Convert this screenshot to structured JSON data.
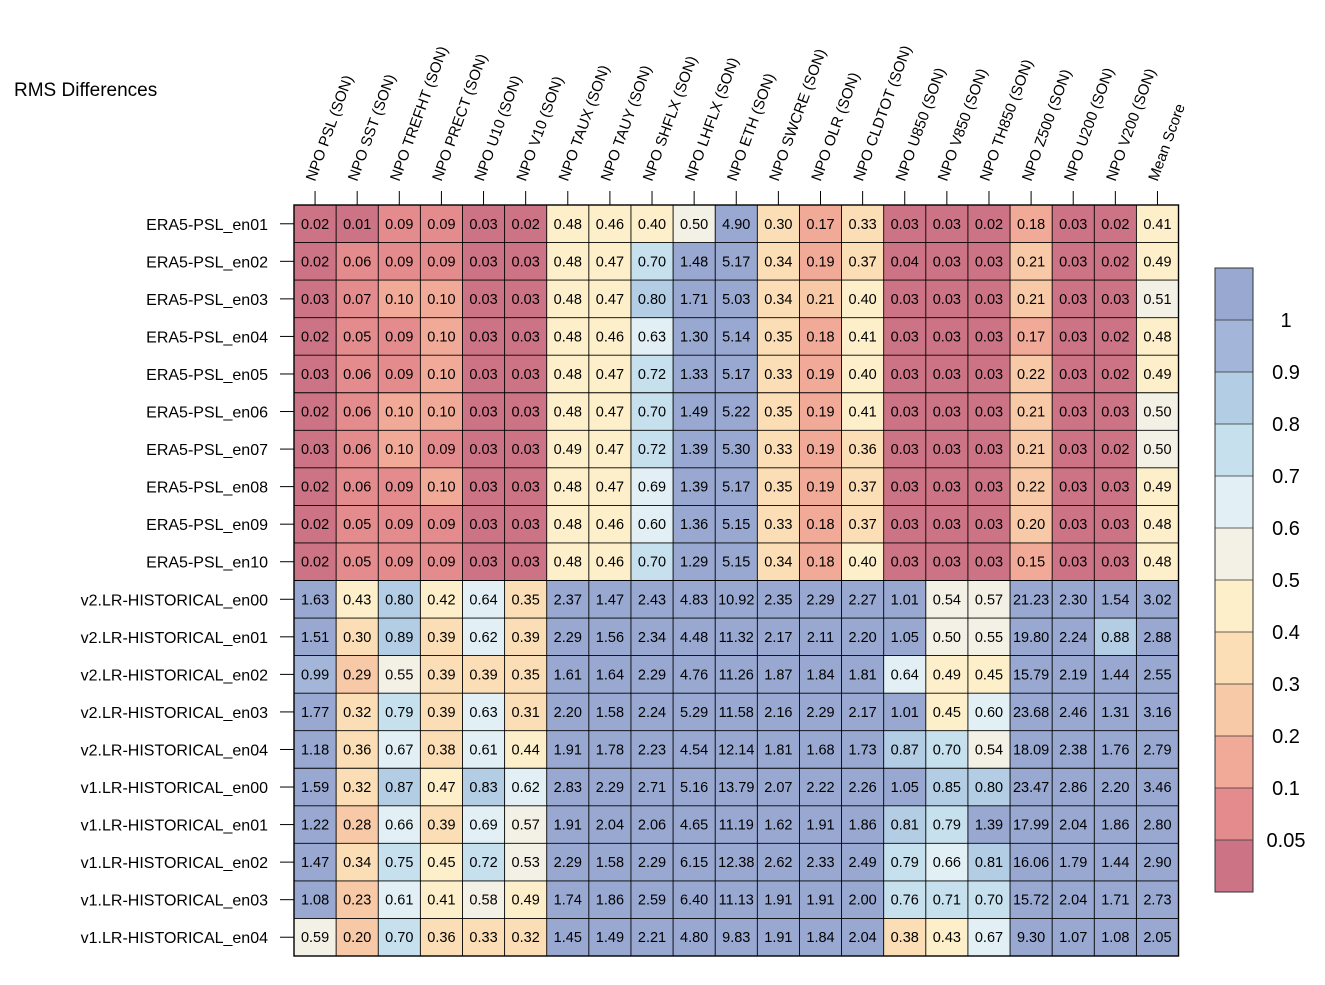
{
  "title": "RMS Differences",
  "chart_data": {
    "type": "heatmap",
    "title": "RMS Differences",
    "columns": [
      "NPO PSL (SON)",
      "NPO SST (SON)",
      "NPO TREFHT (SON)",
      "NPO PRECT (SON)",
      "NPO U10 (SON)",
      "NPO V10 (SON)",
      "NPO TAUX (SON)",
      "NPO TAUY (SON)",
      "NPO SHFLX (SON)",
      "NPO LHFLX (SON)",
      "NPO ETH (SON)",
      "NPO SWCRE (SON)",
      "NPO OLR (SON)",
      "NPO CLDTOT (SON)",
      "NPO U850 (SON)",
      "NPO V850 (SON)",
      "NPO TH850 (SON)",
      "NPO Z500 (SON)",
      "NPO U200 (SON)",
      "NPO V200 (SON)",
      "Mean Score"
    ],
    "rows": [
      "ERA5-PSL_en01",
      "ERA5-PSL_en02",
      "ERA5-PSL_en03",
      "ERA5-PSL_en04",
      "ERA5-PSL_en05",
      "ERA5-PSL_en06",
      "ERA5-PSL_en07",
      "ERA5-PSL_en08",
      "ERA5-PSL_en09",
      "ERA5-PSL_en10",
      "v2.LR-HISTORICAL_en00",
      "v2.LR-HISTORICAL_en01",
      "v2.LR-HISTORICAL_en02",
      "v2.LR-HISTORICAL_en03",
      "v2.LR-HISTORICAL_en04",
      "v1.LR-HISTORICAL_en00",
      "v1.LR-HISTORICAL_en01",
      "v1.LR-HISTORICAL_en02",
      "v1.LR-HISTORICAL_en03",
      "v1.LR-HISTORICAL_en04"
    ],
    "values": [
      [
        "0.02",
        "0.01",
        "0.09",
        "0.09",
        "0.03",
        "0.02",
        "0.48",
        "0.46",
        "0.40",
        "0.50",
        "4.90",
        "0.30",
        "0.17",
        "0.33",
        "0.03",
        "0.03",
        "0.02",
        "0.18",
        "0.03",
        "0.02",
        "0.41"
      ],
      [
        "0.02",
        "0.06",
        "0.09",
        "0.09",
        "0.03",
        "0.03",
        "0.48",
        "0.47",
        "0.70",
        "1.48",
        "5.17",
        "0.34",
        "0.19",
        "0.37",
        "0.04",
        "0.03",
        "0.03",
        "0.21",
        "0.03",
        "0.02",
        "0.49"
      ],
      [
        "0.03",
        "0.07",
        "0.10",
        "0.10",
        "0.03",
        "0.03",
        "0.48",
        "0.47",
        "0.80",
        "1.71",
        "5.03",
        "0.34",
        "0.21",
        "0.40",
        "0.03",
        "0.03",
        "0.03",
        "0.21",
        "0.03",
        "0.03",
        "0.51"
      ],
      [
        "0.02",
        "0.05",
        "0.09",
        "0.10",
        "0.03",
        "0.03",
        "0.48",
        "0.46",
        "0.63",
        "1.30",
        "5.14",
        "0.35",
        "0.18",
        "0.41",
        "0.03",
        "0.03",
        "0.03",
        "0.17",
        "0.03",
        "0.02",
        "0.48"
      ],
      [
        "0.03",
        "0.06",
        "0.09",
        "0.10",
        "0.03",
        "0.03",
        "0.48",
        "0.47",
        "0.72",
        "1.33",
        "5.17",
        "0.33",
        "0.19",
        "0.40",
        "0.03",
        "0.03",
        "0.03",
        "0.22",
        "0.03",
        "0.02",
        "0.49"
      ],
      [
        "0.02",
        "0.06",
        "0.10",
        "0.10",
        "0.03",
        "0.03",
        "0.48",
        "0.47",
        "0.70",
        "1.49",
        "5.22",
        "0.35",
        "0.19",
        "0.41",
        "0.03",
        "0.03",
        "0.03",
        "0.21",
        "0.03",
        "0.03",
        "0.50"
      ],
      [
        "0.03",
        "0.06",
        "0.10",
        "0.09",
        "0.03",
        "0.03",
        "0.49",
        "0.47",
        "0.72",
        "1.39",
        "5.30",
        "0.33",
        "0.19",
        "0.36",
        "0.03",
        "0.03",
        "0.03",
        "0.21",
        "0.03",
        "0.02",
        "0.50"
      ],
      [
        "0.02",
        "0.06",
        "0.09",
        "0.10",
        "0.03",
        "0.03",
        "0.48",
        "0.47",
        "0.69",
        "1.39",
        "5.17",
        "0.35",
        "0.19",
        "0.37",
        "0.03",
        "0.03",
        "0.03",
        "0.22",
        "0.03",
        "0.03",
        "0.49"
      ],
      [
        "0.02",
        "0.05",
        "0.09",
        "0.09",
        "0.03",
        "0.03",
        "0.48",
        "0.46",
        "0.60",
        "1.36",
        "5.15",
        "0.33",
        "0.18",
        "0.37",
        "0.03",
        "0.03",
        "0.03",
        "0.20",
        "0.03",
        "0.03",
        "0.48"
      ],
      [
        "0.02",
        "0.05",
        "0.09",
        "0.09",
        "0.03",
        "0.03",
        "0.48",
        "0.46",
        "0.70",
        "1.29",
        "5.15",
        "0.34",
        "0.18",
        "0.40",
        "0.03",
        "0.03",
        "0.03",
        "0.15",
        "0.03",
        "0.03",
        "0.48"
      ],
      [
        "1.63",
        "0.43",
        "0.80",
        "0.42",
        "0.64",
        "0.35",
        "2.37",
        "1.47",
        "2.43",
        "4.83",
        "10.92",
        "2.35",
        "2.29",
        "2.27",
        "1.01",
        "0.54",
        "0.57",
        "21.23",
        "2.30",
        "1.54",
        "3.02"
      ],
      [
        "1.51",
        "0.30",
        "0.89",
        "0.39",
        "0.62",
        "0.39",
        "2.29",
        "1.56",
        "2.34",
        "4.48",
        "11.32",
        "2.17",
        "2.11",
        "2.20",
        "1.05",
        "0.50",
        "0.55",
        "19.80",
        "2.24",
        "0.88",
        "2.88"
      ],
      [
        "0.99",
        "0.29",
        "0.55",
        "0.39",
        "0.39",
        "0.35",
        "1.61",
        "1.64",
        "2.29",
        "4.76",
        "11.26",
        "1.87",
        "1.84",
        "1.81",
        "0.64",
        "0.49",
        "0.45",
        "15.79",
        "2.19",
        "1.44",
        "2.55"
      ],
      [
        "1.77",
        "0.32",
        "0.79",
        "0.39",
        "0.63",
        "0.31",
        "2.20",
        "1.58",
        "2.24",
        "5.29",
        "11.58",
        "2.16",
        "2.29",
        "2.17",
        "1.01",
        "0.45",
        "0.60",
        "23.68",
        "2.46",
        "1.31",
        "3.16"
      ],
      [
        "1.18",
        "0.36",
        "0.67",
        "0.38",
        "0.61",
        "0.44",
        "1.91",
        "1.78",
        "2.23",
        "4.54",
        "12.14",
        "1.81",
        "1.68",
        "1.73",
        "0.87",
        "0.70",
        "0.54",
        "18.09",
        "2.38",
        "1.76",
        "2.79"
      ],
      [
        "1.59",
        "0.32",
        "0.87",
        "0.47",
        "0.83",
        "0.62",
        "2.83",
        "2.29",
        "2.71",
        "5.16",
        "13.79",
        "2.07",
        "2.22",
        "2.26",
        "1.05",
        "0.85",
        "0.80",
        "23.47",
        "2.86",
        "2.20",
        "3.46"
      ],
      [
        "1.22",
        "0.28",
        "0.66",
        "0.39",
        "0.69",
        "0.57",
        "1.91",
        "2.04",
        "2.06",
        "4.65",
        "11.19",
        "1.62",
        "1.91",
        "1.86",
        "0.81",
        "0.79",
        "1.39",
        "17.99",
        "2.04",
        "1.86",
        "2.80"
      ],
      [
        "1.47",
        "0.34",
        "0.75",
        "0.45",
        "0.72",
        "0.53",
        "2.29",
        "1.58",
        "2.29",
        "6.15",
        "12.38",
        "2.62",
        "2.33",
        "2.49",
        "0.79",
        "0.66",
        "0.81",
        "16.06",
        "1.79",
        "1.44",
        "2.90"
      ],
      [
        "1.08",
        "0.23",
        "0.61",
        "0.41",
        "0.58",
        "0.49",
        "1.74",
        "1.86",
        "2.59",
        "6.40",
        "11.13",
        "1.91",
        "1.91",
        "2.00",
        "0.76",
        "0.71",
        "0.70",
        "15.72",
        "2.04",
        "1.71",
        "2.73"
      ],
      [
        "0.59",
        "0.20",
        "0.70",
        "0.36",
        "0.33",
        "0.32",
        "1.45",
        "1.49",
        "2.21",
        "4.80",
        "9.83",
        "1.91",
        "1.84",
        "2.04",
        "0.38",
        "0.43",
        "0.67",
        "9.30",
        "1.07",
        "1.08",
        "2.05"
      ]
    ],
    "colorbar": {
      "levels": [
        0.05,
        0.1,
        0.2,
        0.3,
        0.4,
        0.5,
        0.6,
        0.7,
        0.8,
        0.9,
        1
      ],
      "tick_labels": [
        "0.05",
        "0.1",
        "0.2",
        "0.3",
        "0.4",
        "0.5",
        "0.6",
        "0.7",
        "0.8",
        "0.9",
        "1"
      ],
      "colors_low_to_high": [
        "#cc7485",
        "#e48c8d",
        "#f2aa98",
        "#f8c9a6",
        "#fbdeb5",
        "#fcefc9",
        "#f3f1e6",
        "#e2f0f5",
        "#c6e0ed",
        "#b2cde4",
        "#a3b5d9",
        "#98a8d1"
      ]
    },
    "legend_placement": "right"
  }
}
